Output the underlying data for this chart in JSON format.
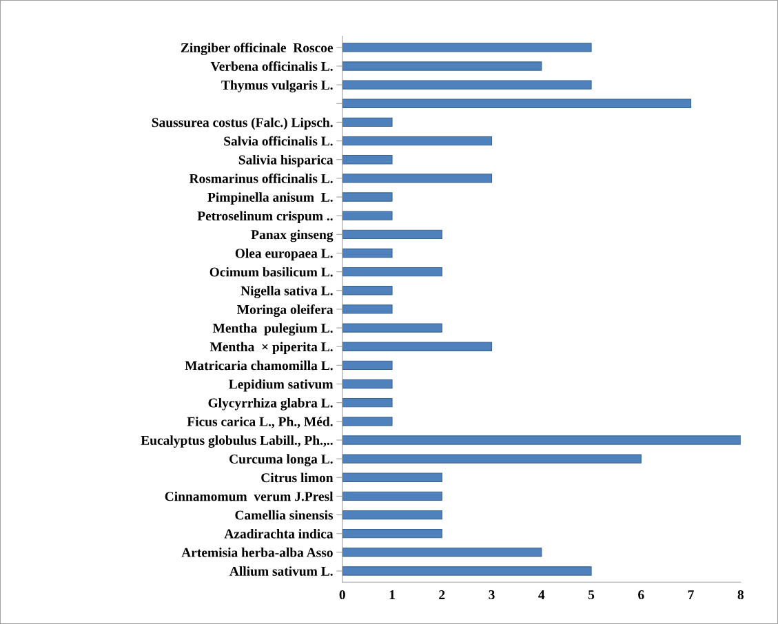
{
  "chart_data": {
    "type": "bar",
    "orientation": "horizontal",
    "color": "#4f81bd",
    "categories": [
      "Zingiber officinale  Roscoe",
      "Verbena officinalis L.",
      "Thymus vulgaris L.",
      null,
      "Saussurea costus (Falc.) Lipsch.",
      "Salvia officinalis L.",
      "Salivia hisparica",
      "Rosmarinus officinalis L.",
      "Pimpinella anisum  L.",
      "Petroselinum crispum ..",
      "Panax ginseng",
      "Olea europaea L.",
      "Ocimum basilicum L.",
      "Nigella sativa L.",
      "Moringa oleifera",
      "Mentha  pulegium L.",
      "Mentha  × piperita L.",
      "Matricaria chamomilla L.",
      "Lepidium sativum",
      "Glycyrrhiza glabra L.",
      "Ficus carica L., Ph., Méd.",
      "Eucalyptus globulus Labill., Ph.,..",
      "Curcuma longa L.",
      "Citrus limon",
      "Cinnamomum  verum J.Presl",
      "Camellia sinensis",
      "Azadirachta indica",
      "Artemisia herba-alba Asso",
      "Allium sativum L."
    ],
    "values": [
      5,
      4,
      5,
      7,
      1,
      3,
      1,
      3,
      1,
      1,
      2,
      1,
      2,
      1,
      1,
      2,
      3,
      1,
      1,
      1,
      1,
      8,
      6,
      2,
      2,
      2,
      2,
      4,
      5
    ],
    "xlim": [
      0,
      8
    ],
    "xticks": [
      0,
      1,
      2,
      3,
      4,
      5,
      6,
      7,
      8
    ],
    "grid": false
  }
}
